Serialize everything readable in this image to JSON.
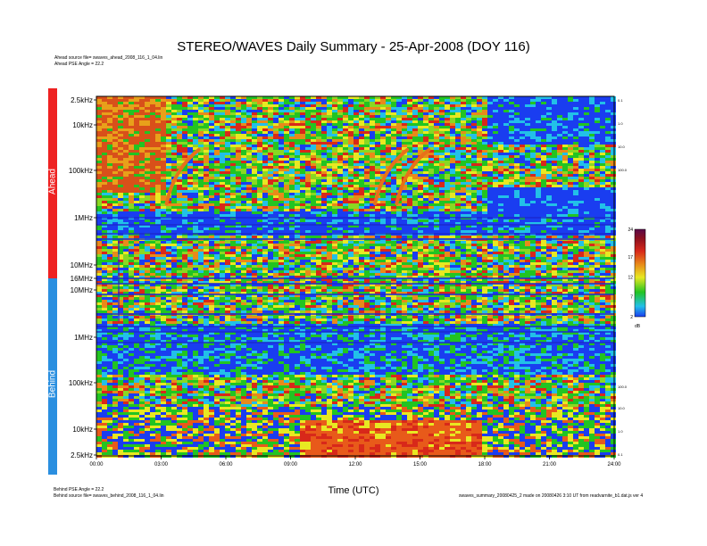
{
  "title": "STEREO/WAVES Daily Summary - 25-Apr-2008 (DOY 116)",
  "header_notes": {
    "ahead_source": "Ahead source file= swaves_ahead_2008_116_1_04.lin",
    "ahead_pse": "Ahead PSE Angle = 22.2"
  },
  "footer_notes": {
    "behind_pse": "Behind PSE Angle = 22.2",
    "behind_source": "Behind source file= swaves_behind_2008_116_1_04.lin",
    "credit": "swaves_summary_20080425_2 made on 20080426 3:10 UT from readvarnite_b1.dat.js ver 4"
  },
  "colors": {
    "ahead_band": "#ee2222",
    "behind_band": "#2a8fe0",
    "spectrogram_background": "#1c2be0",
    "noise": "#22c422",
    "burst": "#e85a1a"
  },
  "chart_data": {
    "type": "heatmap",
    "title": "STEREO/WAVES Daily Summary - 25-Apr-2008 (DOY 116)",
    "xlabel": "Time (UTC)",
    "x_ticks": [
      "00:00",
      "03:00",
      "06:00",
      "09:00",
      "12:00",
      "15:00",
      "18:00",
      "21:00",
      "24:00"
    ],
    "xlim_hours": [
      0,
      24
    ],
    "panels": [
      {
        "name": "Ahead",
        "y_ticks": [
          "2.5kHz",
          "10kHz",
          "100kHz",
          "1MHz",
          "10MHz",
          "16MHz"
        ],
        "scale": "log",
        "type_iii_bursts_start_utc": [
          "03:30",
          "13:10",
          "14:10"
        ]
      },
      {
        "name": "Behind",
        "y_ticks": [
          "10MHz",
          "1MHz",
          "100kHz",
          "10kHz",
          "2.5kHz"
        ],
        "scale": "log"
      }
    ],
    "right_ticks_ahead": [
      "0.1",
      "1.0",
      "10.0",
      "100.0"
    ],
    "right_ticks_behind": [
      "100.0",
      "10.0",
      "1.0",
      "0.1"
    ],
    "colorbar": {
      "unit": "dB",
      "ticks": [
        "2",
        "7",
        "12",
        "17",
        "24"
      ],
      "range": [
        2,
        24
      ]
    }
  }
}
